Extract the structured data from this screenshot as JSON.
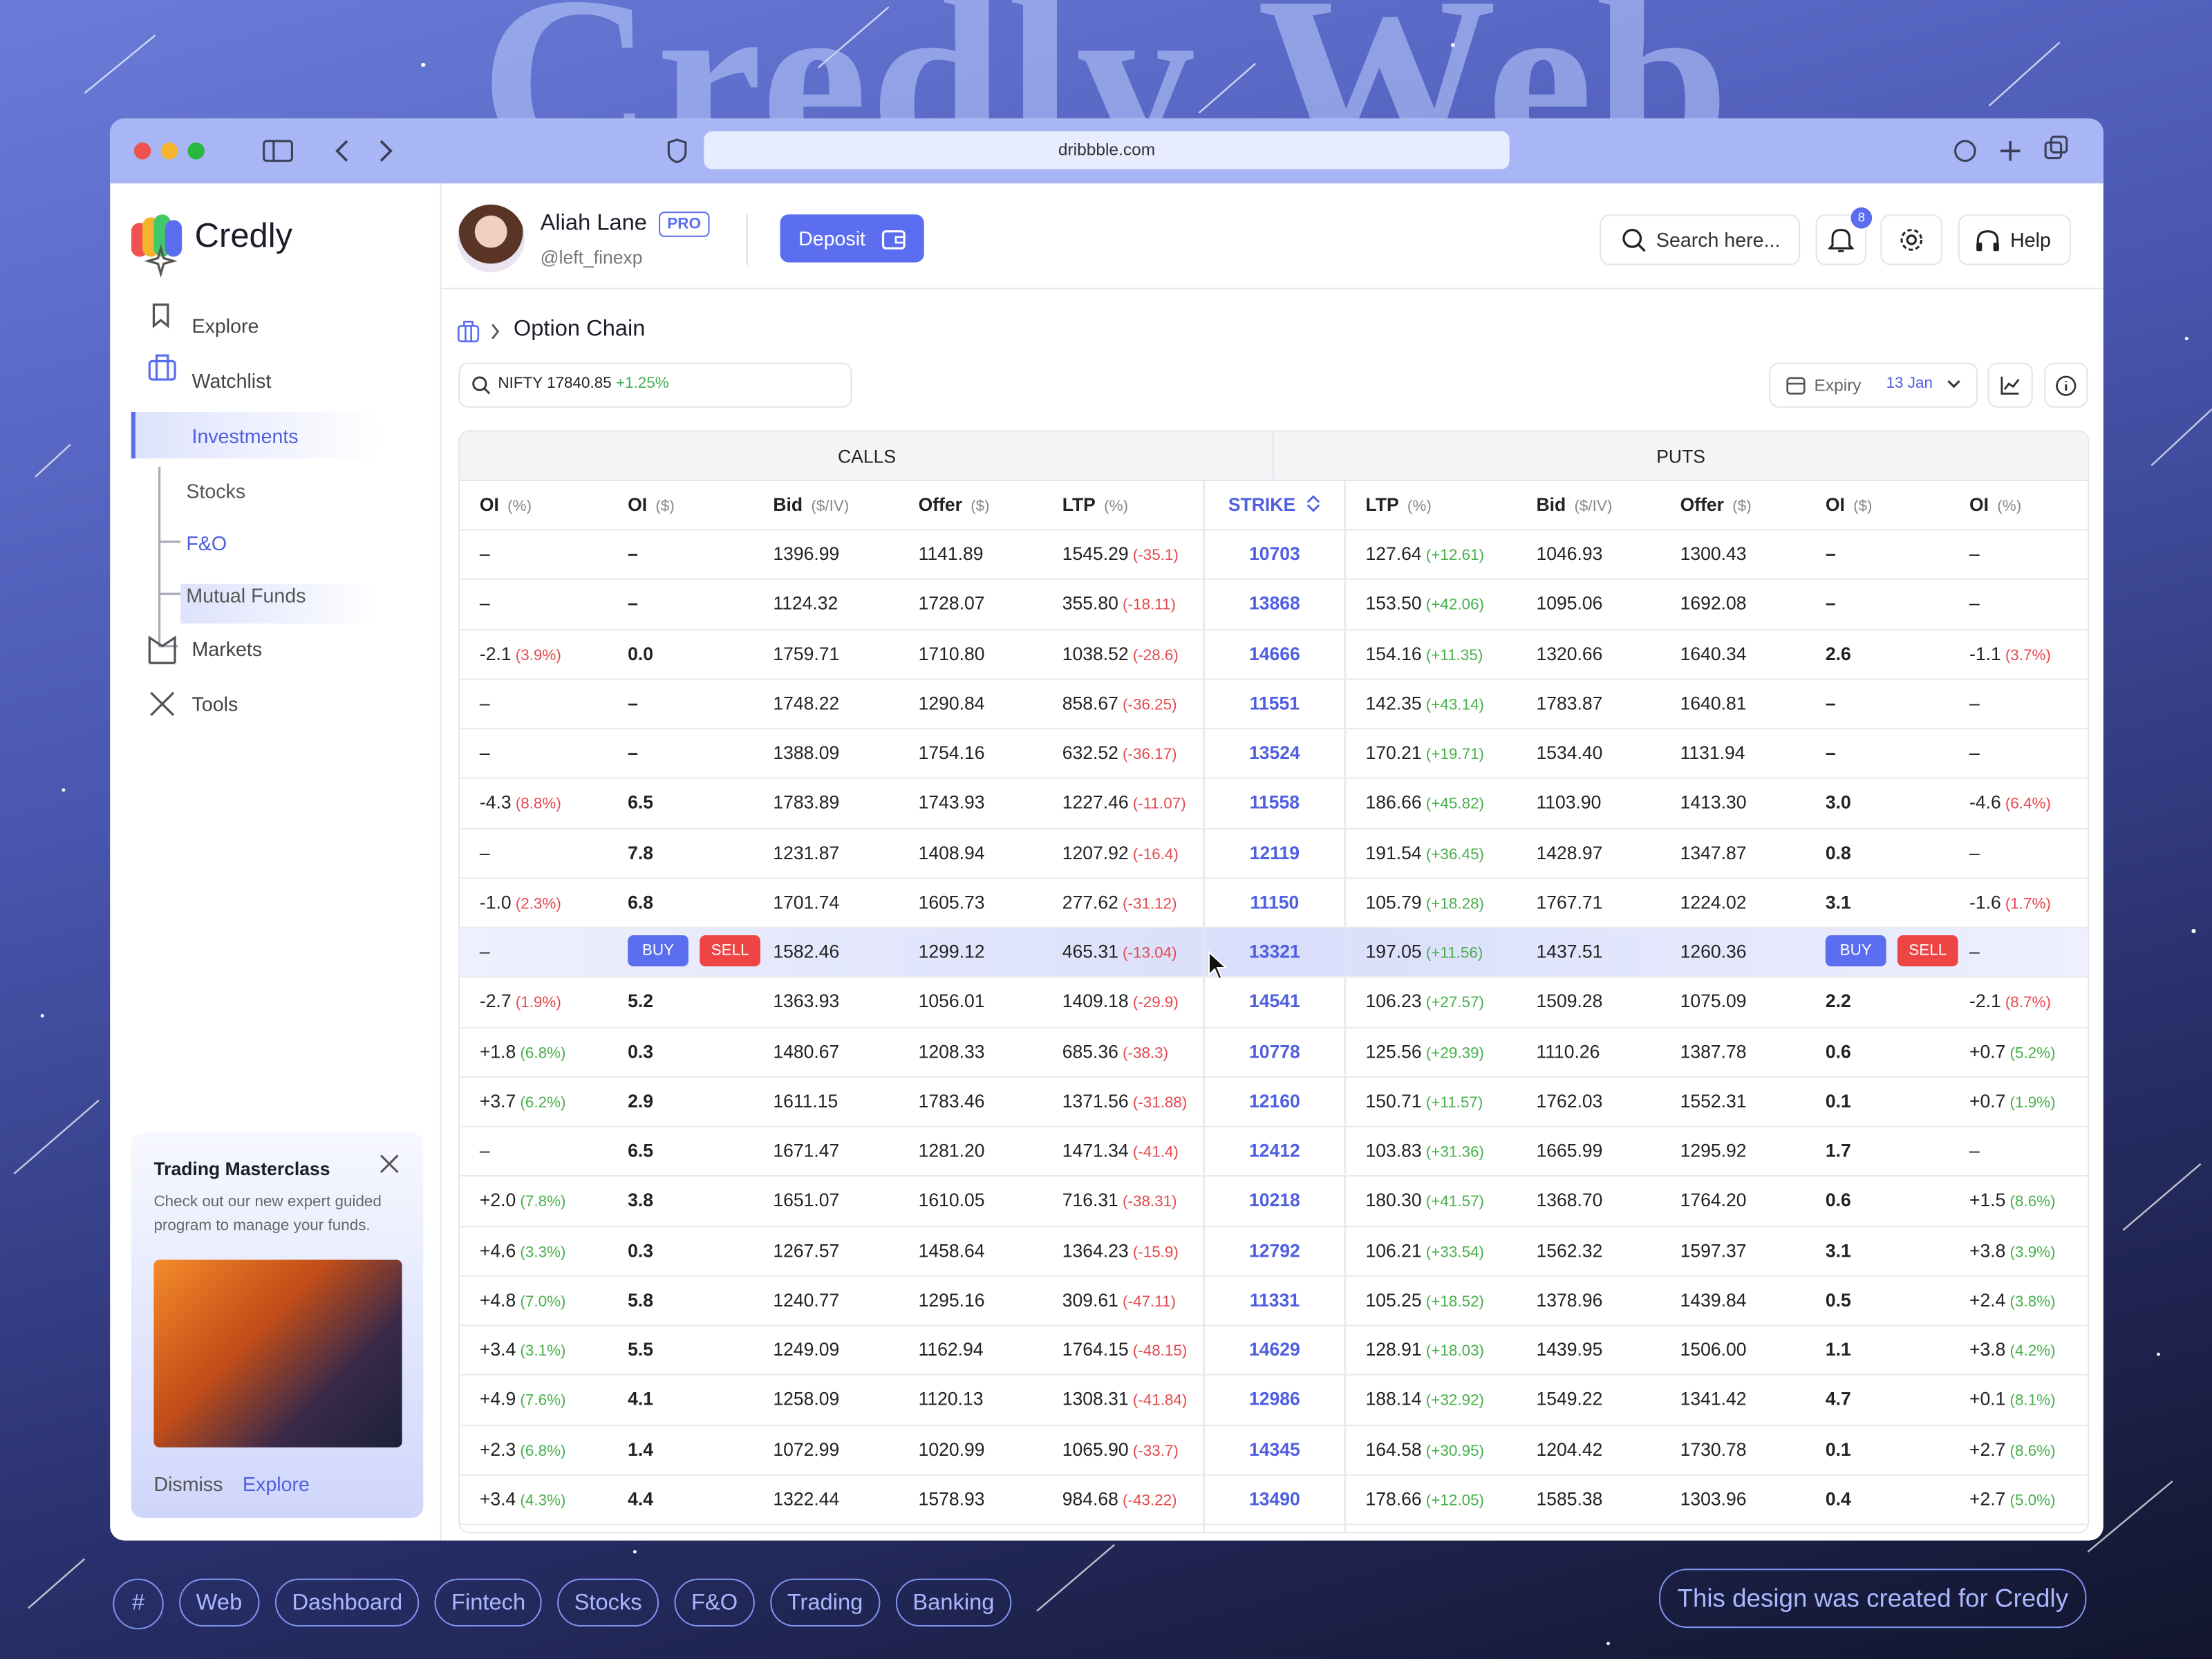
{
  "hero_title": "Credly Web",
  "browser": {
    "url": "dribbble.com"
  },
  "sidebar": {
    "logo": "Credly",
    "nav": [
      "Explore",
      "Watchlist",
      "Investments"
    ],
    "sub": [
      "Stocks",
      "F&O",
      "Mutual Funds"
    ],
    "nav2": [
      "Markets",
      "Tools"
    ],
    "promo": {
      "title": "Trading Masterclass",
      "text": "Check out our new expert guided program to manage your funds.",
      "dismiss": "Dismiss",
      "explore": "Explore"
    }
  },
  "header": {
    "name": "Aliah Lane",
    "badge": "PRO",
    "handle": "@left_finexp",
    "deposit": "Deposit",
    "search": "Search here...",
    "notifications": "8",
    "help": "Help"
  },
  "breadcrumb": "Option Chain",
  "index": {
    "name": "NIFTY 17840.85",
    "change": "+1.25%"
  },
  "expiry": {
    "label": "Expiry",
    "value": "13 Jan"
  },
  "table": {
    "groups": [
      "CALLS",
      "PUTS"
    ],
    "columns": [
      [
        "OI",
        "(%)"
      ],
      [
        "OI",
        "($)"
      ],
      [
        "Bid",
        "($/IV)"
      ],
      [
        "Offer",
        "($)"
      ],
      [
        "LTP",
        "(%)"
      ],
      [
        "STRIKE"
      ],
      [
        "LTP",
        "(%)"
      ],
      [
        "Bid",
        "($/IV)"
      ],
      [
        "Offer",
        "($)"
      ],
      [
        "OI",
        "($)"
      ],
      [
        "OI",
        "(%)"
      ]
    ],
    "rows": [
      [
        "–",
        "–",
        "1396.99",
        "1141.89",
        [
          "1545.29",
          "(-35.1)"
        ],
        "10703",
        [
          "127.64",
          "(+12.61)"
        ],
        "1046.93",
        "1300.43",
        "–",
        "–"
      ],
      [
        "–",
        "–",
        "1124.32",
        "1728.07",
        [
          "355.80",
          "(-18.11)"
        ],
        "13868",
        [
          "153.50",
          "(+42.06)"
        ],
        "1095.06",
        "1692.08",
        "–",
        "–"
      ],
      [
        [
          "-2.1",
          "(3.9%)"
        ],
        "0.0",
        "1759.71",
        "1710.80",
        [
          "1038.52",
          "(-28.6)"
        ],
        "14666",
        [
          "154.16",
          "(+11.35)"
        ],
        "1320.66",
        "1640.34",
        "2.6",
        [
          "-1.1",
          "(3.7%)"
        ]
      ],
      [
        "–",
        "–",
        "1748.22",
        "1290.84",
        [
          "858.67",
          "(-36.25)"
        ],
        "11551",
        [
          "142.35",
          "(+43.14)"
        ],
        "1783.87",
        "1640.81",
        "–",
        "–"
      ],
      [
        "–",
        "–",
        "1388.09",
        "1754.16",
        [
          "632.52",
          "(-36.17)"
        ],
        "13524",
        [
          "170.21",
          "(+19.71)"
        ],
        "1534.40",
        "1131.94",
        "–",
        "–"
      ],
      [
        [
          "-4.3",
          "(8.8%)"
        ],
        "6.5",
        "1783.89",
        "1743.93",
        [
          "1227.46",
          "(-11.07)"
        ],
        "11558",
        [
          "186.66",
          "(+45.82)"
        ],
        "1103.90",
        "1413.30",
        "3.0",
        [
          "-4.6",
          "(6.4%)"
        ]
      ],
      [
        "–",
        "7.8",
        "1231.87",
        "1408.94",
        [
          "1207.92",
          "(-16.4)"
        ],
        "12119",
        [
          "191.54",
          "(+36.45)"
        ],
        "1428.97",
        "1347.87",
        "0.8",
        "–"
      ],
      [
        [
          "-1.0",
          "(2.3%)"
        ],
        "6.8",
        "1701.74",
        "1605.73",
        [
          "277.62",
          "(-31.12)"
        ],
        "11150",
        [
          "105.79",
          "(+18.28)"
        ],
        "1767.71",
        "1224.02",
        "3.1",
        [
          "-1.6",
          "(1.7%)"
        ]
      ],
      [
        "–",
        {
          "buttons": [
            "BUY",
            "SELL"
          ]
        },
        "1582.46",
        "1299.12",
        [
          "465.31",
          "(-13.04)"
        ],
        "13321",
        [
          "197.05",
          "(+11.56)"
        ],
        "1437.51",
        "1260.36",
        {
          "buttons": [
            "BUY",
            "SELL"
          ]
        },
        "–"
      ],
      [
        [
          "-2.7",
          "(1.9%)"
        ],
        "5.2",
        "1363.93",
        "1056.01",
        [
          "1409.18",
          "(-29.9)"
        ],
        "14541",
        [
          "106.23",
          "(+27.57)"
        ],
        "1509.28",
        "1075.09",
        "2.2",
        [
          "-2.1",
          "(8.7%)"
        ]
      ],
      [
        [
          "+1.8",
          "(6.8%)"
        ],
        "0.3",
        "1480.67",
        "1208.33",
        [
          "685.36",
          "(-38.3)"
        ],
        "10778",
        [
          "125.56",
          "(+29.39)"
        ],
        "1110.26",
        "1387.78",
        "0.6",
        [
          "+0.7",
          "(5.2%)"
        ]
      ],
      [
        [
          "+3.7",
          "(6.2%)"
        ],
        "2.9",
        "1611.15",
        "1783.46",
        [
          "1371.56",
          "(-31.88)"
        ],
        "12160",
        [
          "150.71",
          "(+11.57)"
        ],
        "1762.03",
        "1552.31",
        "0.1",
        [
          "+0.7",
          "(1.9%)"
        ]
      ],
      [
        "–",
        "6.5",
        "1671.47",
        "1281.20",
        [
          "1471.34",
          "(-41.4)"
        ],
        "12412",
        [
          "103.83",
          "(+31.36)"
        ],
        "1665.99",
        "1295.92",
        "1.7",
        "–"
      ],
      [
        [
          "+2.0",
          "(7.8%)"
        ],
        "3.8",
        "1651.07",
        "1610.05",
        [
          "716.31",
          "(-38.31)"
        ],
        "10218",
        [
          "180.30",
          "(+41.57)"
        ],
        "1368.70",
        "1764.20",
        "0.6",
        [
          "+1.5",
          "(8.6%)"
        ]
      ],
      [
        [
          "+4.6",
          "(3.3%)"
        ],
        "0.3",
        "1267.57",
        "1458.64",
        [
          "1364.23",
          "(-15.9)"
        ],
        "12792",
        [
          "106.21",
          "(+33.54)"
        ],
        "1562.32",
        "1597.37",
        "3.1",
        [
          "+3.8",
          "(3.9%)"
        ]
      ],
      [
        [
          "+4.8",
          "(7.0%)"
        ],
        "5.8",
        "1240.77",
        "1295.16",
        [
          "309.61",
          "(-47.11)"
        ],
        "11331",
        [
          "105.25",
          "(+18.52)"
        ],
        "1378.96",
        "1439.84",
        "0.5",
        [
          "+2.4",
          "(3.8%)"
        ]
      ],
      [
        [
          "+3.4",
          "(3.1%)"
        ],
        "5.5",
        "1249.09",
        "1162.94",
        [
          "1764.15",
          "(-48.15)"
        ],
        "14629",
        [
          "128.91",
          "(+18.03)"
        ],
        "1439.95",
        "1506.00",
        "1.1",
        [
          "+3.8",
          "(4.2%)"
        ]
      ],
      [
        [
          "+4.9",
          "(7.6%)"
        ],
        "4.1",
        "1258.09",
        "1120.13",
        [
          "1308.31",
          "(-41.84)"
        ],
        "12986",
        [
          "188.14",
          "(+32.92)"
        ],
        "1549.22",
        "1341.42",
        "4.7",
        [
          "+0.1",
          "(8.1%)"
        ]
      ],
      [
        [
          "+2.3",
          "(6.8%)"
        ],
        "1.4",
        "1072.99",
        "1020.99",
        [
          "1065.90",
          "(-33.7)"
        ],
        "14345",
        [
          "164.58",
          "(+30.95)"
        ],
        "1204.42",
        "1730.78",
        "0.1",
        [
          "+2.7",
          "(8.6%)"
        ]
      ],
      [
        [
          "+3.4",
          "(4.3%)"
        ],
        "4.4",
        "1322.44",
        "1578.93",
        [
          "984.68",
          "(-43.22)"
        ],
        "13490",
        [
          "178.66",
          "(+12.05)"
        ],
        "1585.38",
        "1303.96",
        "0.4",
        [
          "+2.7",
          "(5.0%)"
        ]
      ]
    ]
  },
  "tags": [
    "#",
    "Web",
    "Dashboard",
    "Fintech",
    "Stocks",
    "F&O",
    "Trading",
    "Banking"
  ],
  "footer_note": "This design was created for Credly"
}
